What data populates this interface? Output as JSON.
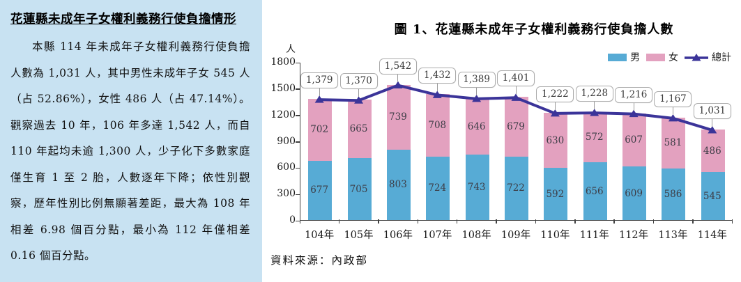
{
  "panel": {
    "title": "花蓮縣未成年子女權利義務行使負擔情形",
    "body": "本縣 114 年未成年子女權利義務行使負擔人數為 1,031 人，其中男性未成年子女 545 人（占 52.86%），女性 486 人（占 47.14%）。觀察過去 10 年，106 年多達 1,542 人，而自 110 年起均未逾 1,300 人，少子化下多數家庭僅生育 1 至 2 胎，人數逐年下降；依性別觀察，歷年性別比例無顯著差距，最大為 108 年相差 6.98 個百分點，最小為 112 年僅相差 0.16 個百分點。"
  },
  "chart_data": {
    "type": "bar",
    "subtype": "stacked-bars-with-total-line",
    "title": "圖 1、花蓮縣未成年子女權利義務行使負擔人數",
    "categories": [
      "104年",
      "105年",
      "106年",
      "107年",
      "108年",
      "109年",
      "110年",
      "111年",
      "112年",
      "113年",
      "114年"
    ],
    "series": [
      {
        "name": "男",
        "type": "bar",
        "color": "#57ABD5",
        "values": [
          677,
          705,
          803,
          724,
          743,
          722,
          592,
          656,
          609,
          586,
          545
        ]
      },
      {
        "name": "女",
        "type": "bar",
        "color": "#E3A1BF",
        "values": [
          702,
          665,
          739,
          708,
          646,
          679,
          630,
          572,
          607,
          581,
          486
        ]
      },
      {
        "name": "總計",
        "type": "line",
        "color": "#3B3499",
        "values": [
          1379,
          1370,
          1542,
          1432,
          1389,
          1401,
          1222,
          1228,
          1216,
          1167,
          1031
        ],
        "labels": [
          "1,379",
          "1,370",
          "1,542",
          "1,432",
          "1,389",
          "1,401",
          "1,222",
          "1,228",
          "1,216",
          "1,167",
          "1,031"
        ]
      }
    ],
    "ylabel_unit": "人",
    "ylim": [
      0,
      1800
    ],
    "yticks": [
      0,
      300,
      600,
      900,
      1200,
      1500,
      1800
    ],
    "grid": false,
    "legend_position": "top-right",
    "source": "資料來源：內政部"
  },
  "colors": {
    "panel_background": "#C8E2F2",
    "male_bar": "#57ABD5",
    "female_bar": "#E3A1BF",
    "total_line": "#3B3499",
    "axis": "#404040",
    "callout_border": "#ABABAB"
  }
}
